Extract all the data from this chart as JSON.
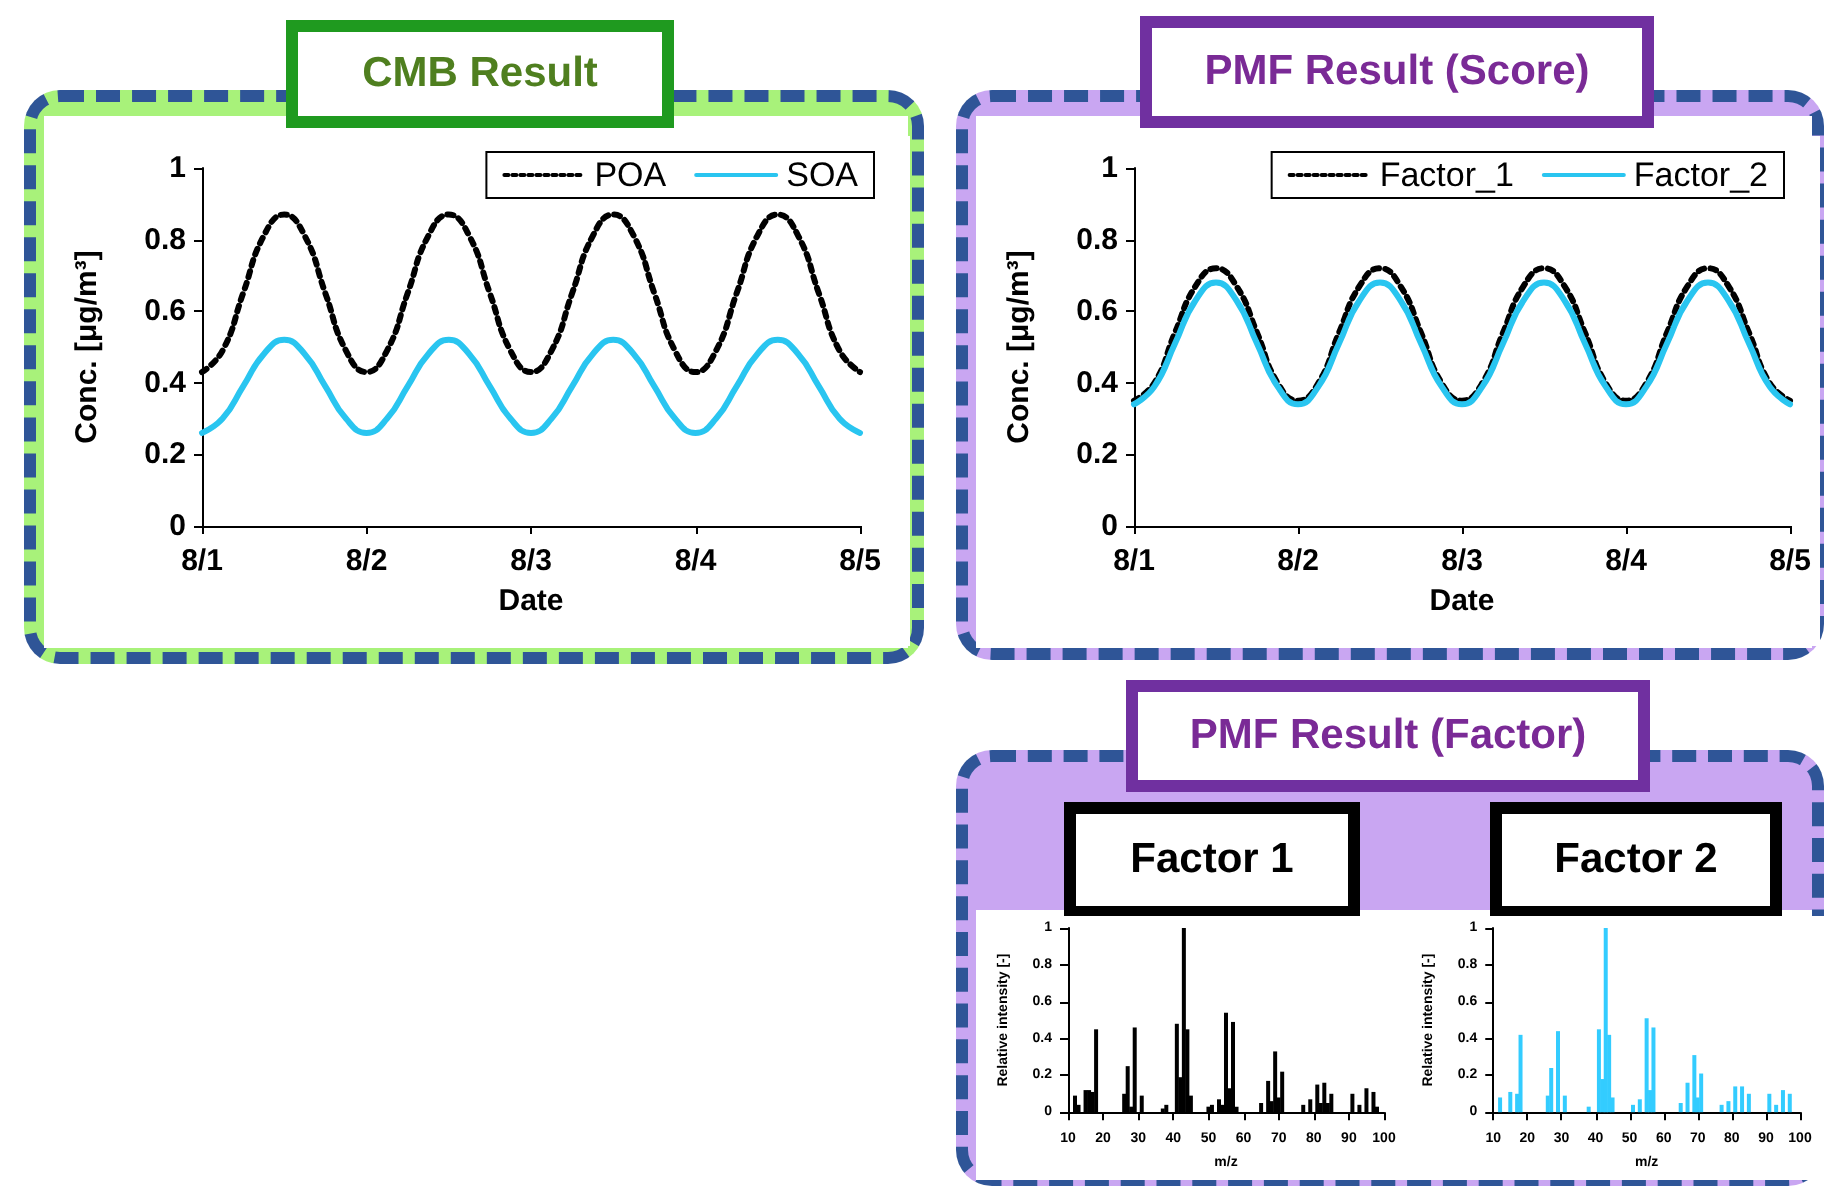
{
  "chart_data": [
    {
      "type": "line",
      "title": "CMB Result",
      "xlabel": "Date",
      "ylabel": "Conc. [μg/m³]",
      "x": [
        "--08-01T00:00",
        "--08-01T03:00",
        "--08-01T06:00",
        "--08-01T09:00",
        "--08-01T12:00",
        "--08-01T15:00",
        "--08-01T18:00",
        "--08-01T21:00",
        "--08-02T00:00",
        "--08-02T03:00",
        "--08-02T06:00",
        "--08-02T09:00",
        "--08-02T12:00",
        "--08-02T15:00",
        "--08-02T18:00",
        "--08-02T21:00",
        "--08-03T00:00",
        "--08-03T03:00",
        "--08-03T06:00",
        "--08-03T09:00",
        "--08-03T12:00",
        "--08-03T15:00",
        "--08-03T18:00",
        "--08-03T21:00",
        "--08-04T00:00",
        "--08-04T03:00",
        "--08-04T06:00",
        "--08-04T09:00",
        "--08-04T12:00",
        "--08-04T15:00",
        "--08-04T18:00",
        "--08-04T21:00",
        "--08-05T00:00"
      ],
      "xlim": [
        "--08-01",
        "--08-05"
      ],
      "xticks": [
        {
          "value": "--08-01",
          "label": "8/1"
        },
        {
          "value": "--08-02",
          "label": "8/2"
        },
        {
          "value": "--08-03",
          "label": "8/3"
        },
        {
          "value": "--08-04",
          "label": "8/4"
        },
        {
          "value": "--08-05",
          "label": "8/5"
        }
      ],
      "ylim": [
        0,
        1
      ],
      "yticks": [
        0,
        0.2,
        0.4,
        0.6,
        0.8,
        1
      ],
      "grid": false,
      "legend": "top right",
      "marker": "none",
      "series": [
        {
          "name": "POA",
          "color": "#000000",
          "line_style": "dotted",
          "values": [
            0.43,
            0.49,
            0.65,
            0.81,
            0.87,
            0.81,
            0.65,
            0.49,
            0.43,
            0.49,
            0.65,
            0.81,
            0.87,
            0.81,
            0.65,
            0.49,
            0.43,
            0.49,
            0.65,
            0.81,
            0.87,
            0.81,
            0.65,
            0.49,
            0.43,
            0.49,
            0.65,
            0.81,
            0.87,
            0.81,
            0.65,
            0.49,
            0.43
          ]
        },
        {
          "name": "SOA",
          "color": "#29c5f0",
          "line_style": "solid",
          "values": [
            0.26,
            0.3,
            0.39,
            0.48,
            0.52,
            0.48,
            0.39,
            0.3,
            0.26,
            0.3,
            0.39,
            0.48,
            0.52,
            0.48,
            0.39,
            0.3,
            0.26,
            0.3,
            0.39,
            0.48,
            0.52,
            0.48,
            0.39,
            0.3,
            0.26,
            0.3,
            0.39,
            0.48,
            0.52,
            0.48,
            0.39,
            0.3,
            0.26
          ]
        }
      ]
    },
    {
      "type": "line",
      "title": "PMF Result (Score)",
      "xlabel": "Date",
      "ylabel": "Conc. [μg/m³]",
      "x": [
        "--08-01T00:00",
        "--08-01T03:00",
        "--08-01T06:00",
        "--08-01T09:00",
        "--08-01T12:00",
        "--08-01T15:00",
        "--08-01T18:00",
        "--08-01T21:00",
        "--08-02T00:00",
        "--08-02T03:00",
        "--08-02T06:00",
        "--08-02T09:00",
        "--08-02T12:00",
        "--08-02T15:00",
        "--08-02T18:00",
        "--08-02T21:00",
        "--08-03T00:00",
        "--08-03T03:00",
        "--08-03T06:00",
        "--08-03T09:00",
        "--08-03T12:00",
        "--08-03T15:00",
        "--08-03T18:00",
        "--08-03T21:00",
        "--08-04T00:00",
        "--08-04T03:00",
        "--08-04T06:00",
        "--08-04T09:00",
        "--08-04T12:00",
        "--08-04T15:00",
        "--08-04T18:00",
        "--08-04T21:00",
        "--08-05T00:00"
      ],
      "xlim": [
        "--08-01",
        "--08-05"
      ],
      "xticks": [
        {
          "value": "--08-01",
          "label": "8/1"
        },
        {
          "value": "--08-02",
          "label": "8/2"
        },
        {
          "value": "--08-03",
          "label": "8/3"
        },
        {
          "value": "--08-04",
          "label": "8/4"
        },
        {
          "value": "--08-05",
          "label": "8/5"
        }
      ],
      "ylim": [
        0,
        1
      ],
      "yticks": [
        0,
        0.2,
        0.4,
        0.6,
        0.8,
        1
      ],
      "grid": false,
      "legend": "top right",
      "marker": "none",
      "series": [
        {
          "name": "Factor_1",
          "color": "#000000",
          "line_style": "dotted",
          "values": [
            0.35,
            0.4,
            0.54,
            0.67,
            0.72,
            0.67,
            0.54,
            0.4,
            0.35,
            0.4,
            0.54,
            0.67,
            0.72,
            0.67,
            0.54,
            0.4,
            0.35,
            0.4,
            0.54,
            0.67,
            0.72,
            0.67,
            0.54,
            0.4,
            0.35,
            0.4,
            0.54,
            0.67,
            0.72,
            0.67,
            0.54,
            0.4,
            0.35
          ]
        },
        {
          "name": "Factor_2",
          "color": "#29c5f0",
          "line_style": "solid",
          "values": [
            0.34,
            0.39,
            0.51,
            0.63,
            0.68,
            0.63,
            0.51,
            0.39,
            0.34,
            0.39,
            0.51,
            0.63,
            0.68,
            0.63,
            0.51,
            0.39,
            0.34,
            0.39,
            0.51,
            0.63,
            0.68,
            0.63,
            0.51,
            0.39,
            0.34,
            0.39,
            0.51,
            0.63,
            0.68,
            0.63,
            0.51,
            0.39,
            0.34
          ]
        }
      ]
    },
    {
      "type": "bar",
      "title": "Factor 1",
      "annotations": [
        "PMF Result (Factor)"
      ],
      "xlabel": "m/z",
      "ylabel": "Relative intensity [-]",
      "xlim": [
        10,
        100
      ],
      "xticks": [
        10,
        20,
        30,
        40,
        50,
        60,
        70,
        80,
        90,
        100
      ],
      "ylim": [
        0,
        1
      ],
      "yticks": [
        0,
        0.2,
        0.4,
        0.6,
        0.8,
        1
      ],
      "grid": false,
      "legend": false,
      "series": [
        {
          "color": "#000000",
          "x": [
            12,
            13,
            15,
            16,
            17,
            18,
            26,
            27,
            28,
            29,
            31,
            37,
            38,
            41,
            42,
            43,
            44,
            45,
            50,
            51,
            53,
            54,
            55,
            56,
            57,
            58,
            65,
            67,
            68,
            69,
            70,
            71,
            77,
            79,
            81,
            82,
            83,
            84,
            85,
            91,
            93,
            95,
            97,
            98
          ],
          "values": [
            0.09,
            0.04,
            0.12,
            0.12,
            0.11,
            0.45,
            0.1,
            0.25,
            0.03,
            0.46,
            0.09,
            0.02,
            0.04,
            0.48,
            0.19,
            1,
            0.45,
            0.09,
            0.03,
            0.04,
            0.07,
            0.04,
            0.54,
            0.13,
            0.49,
            0.03,
            0.05,
            0.17,
            0.06,
            0.33,
            0.08,
            0.22,
            0.04,
            0.07,
            0.15,
            0.05,
            0.16,
            0.05,
            0.1,
            0.1,
            0.04,
            0.13,
            0.11,
            0.03
          ]
        }
      ]
    },
    {
      "type": "bar",
      "title": "Factor 2",
      "xlabel": "m/z",
      "ylabel": "Relative intensity [-]",
      "xlim": [
        10,
        100
      ],
      "xticks": [
        10,
        20,
        30,
        40,
        50,
        60,
        70,
        80,
        90,
        100
      ],
      "ylim": [
        0,
        1
      ],
      "yticks": [
        0,
        0.2,
        0.4,
        0.6,
        0.8,
        1
      ],
      "grid": false,
      "legend": false,
      "series": [
        {
          "color": "#33ccff",
          "x": [
            12,
            15,
            17,
            18,
            26,
            27,
            29,
            31,
            38,
            41,
            42,
            43,
            44,
            45,
            51,
            53,
            55,
            56,
            57,
            65,
            67,
            69,
            70,
            71,
            77,
            79,
            81,
            83,
            85,
            91,
            93,
            95,
            97
          ],
          "values": [
            0.08,
            0.11,
            0.1,
            0.42,
            0.09,
            0.24,
            0.44,
            0.09,
            0.03,
            0.45,
            0.18,
            1,
            0.42,
            0.08,
            0.04,
            0.07,
            0.51,
            0.12,
            0.46,
            0.05,
            0.16,
            0.31,
            0.08,
            0.21,
            0.04,
            0.06,
            0.14,
            0.14,
            0.1,
            0.1,
            0.04,
            0.12,
            0.1
          ]
        }
      ]
    }
  ]
}
